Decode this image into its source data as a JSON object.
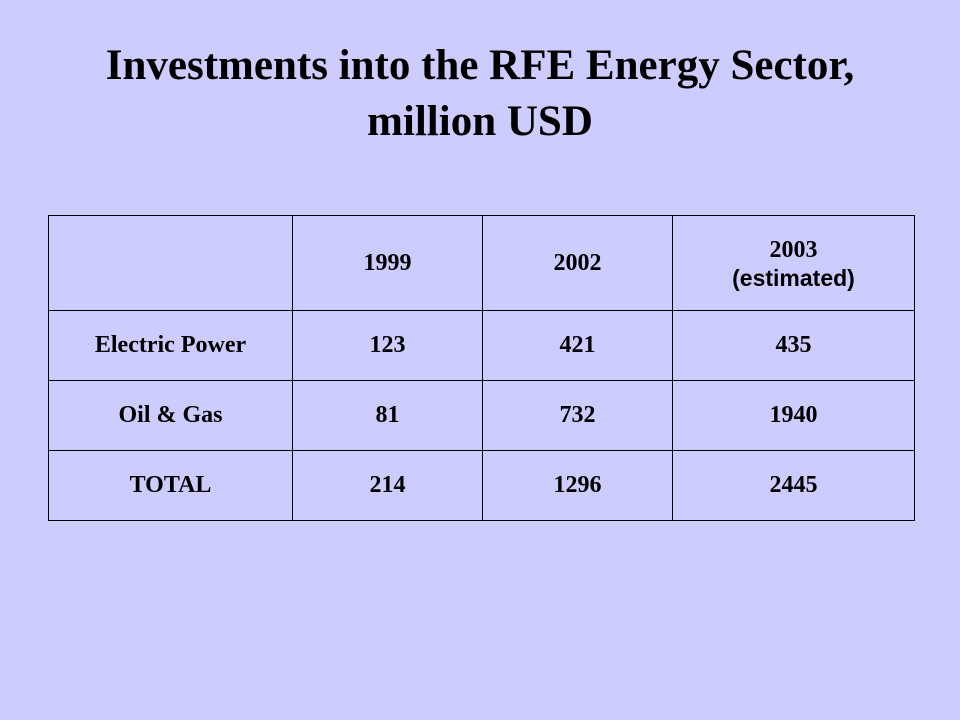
{
  "title": {
    "line1": "Investments into the RFE Energy Sector,",
    "line2": "million USD"
  },
  "chart_data": {
    "type": "table",
    "columns": [
      {
        "label": "",
        "note": ""
      },
      {
        "label": "1999",
        "note": ""
      },
      {
        "label": "2002",
        "note": ""
      },
      {
        "label": "2003",
        "note": "(estimated)"
      }
    ],
    "rows": [
      {
        "label": "Electric Power",
        "values": [
          "123",
          "421",
          "435"
        ]
      },
      {
        "label": "Oil & Gas",
        "values": [
          "81",
          "732",
          "1940"
        ]
      },
      {
        "label": "TOTAL",
        "values": [
          "214",
          "1296",
          "2445"
        ]
      }
    ]
  }
}
